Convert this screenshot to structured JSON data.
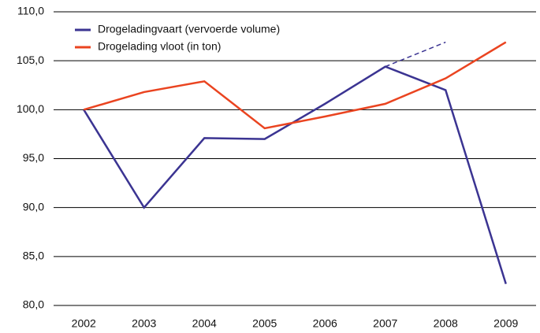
{
  "chart_data": {
    "type": "line",
    "categories": [
      "2002",
      "2003",
      "2004",
      "2005",
      "2006",
      "2007",
      "2008",
      "2009"
    ],
    "series": [
      {
        "name": "Drogeladingvaart (vervoerde volume)",
        "color": "#3b3492",
        "values": [
          100.0,
          90.0,
          97.1,
          97.0,
          100.6,
          104.4,
          102.0,
          82.2
        ]
      },
      {
        "name": "Drogelading vloot (in ton)",
        "color": "#ea4420",
        "values": [
          100.0,
          101.8,
          102.9,
          98.1,
          99.3,
          100.6,
          103.2,
          106.9
        ]
      },
      {
        "color": "#3b3492",
        "dashed": true,
        "values": [
          null,
          null,
          null,
          null,
          null,
          104.4,
          106.9,
          null
        ]
      }
    ],
    "ylim": [
      80,
      110
    ],
    "yticks": [
      {
        "value": 80,
        "label": "80,0"
      },
      {
        "value": 85,
        "label": "85,0"
      },
      {
        "value": 90,
        "label": "90,0"
      },
      {
        "value": 95,
        "label": "95,0"
      },
      {
        "value": 100,
        "label": "100,0"
      },
      {
        "value": 105,
        "label": "105,0"
      },
      {
        "value": 110,
        "label": "110,0"
      }
    ],
    "grid": true,
    "legend": "top-left"
  }
}
